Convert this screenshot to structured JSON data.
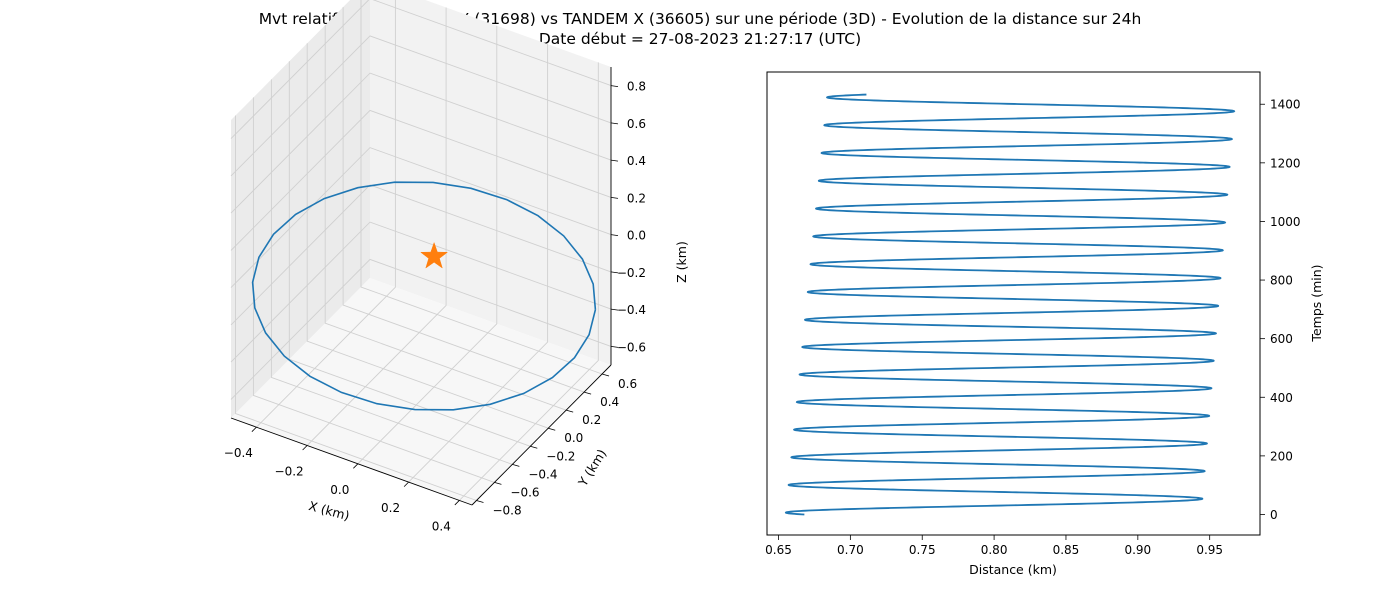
{
  "figure": {
    "title_line1": "Mvt relatif de TERRA SAR X (31698) vs TANDEM X (36605) sur une période (3D) - Evolution de la distance sur 24h",
    "title_line2": "Date début = 27-08-2023 21:27:17 (UTC)"
  },
  "chart_data": [
    {
      "type": "line3d",
      "xlabel": "X (km)",
      "ylabel": "Y (km)",
      "zlabel": "Z (km)",
      "xticks": [
        "−0.4",
        "−0.2",
        "0.0",
        "0.2",
        "0.4"
      ],
      "yticks": [
        "−0.8",
        "−0.6",
        "−0.4",
        "−0.2",
        "0.0",
        "0.2",
        "0.4",
        "0.6"
      ],
      "zticks": [
        "−0.6",
        "−0.4",
        "−0.2",
        "0.0",
        "0.2",
        "0.4",
        "0.6",
        "0.8"
      ],
      "xlim": [
        -0.5,
        0.45
      ],
      "ylim": [
        -0.85,
        0.7
      ],
      "zlim": [
        -0.7,
        0.9
      ],
      "grid": true,
      "series": [
        {
          "color": "#1f77b4",
          "shape": "closed relative-motion ellipse (orbit loop)"
        }
      ],
      "marker": {
        "symbol": "star",
        "color": "#ff7f0e",
        "x": 0.0,
        "y": 0.0,
        "z": 0.0
      }
    },
    {
      "type": "line",
      "xlabel": "Distance (km)",
      "ylabel": "Temps (min)",
      "xticks": [
        "0.65",
        "0.70",
        "0.75",
        "0.80",
        "0.85",
        "0.90",
        "0.95"
      ],
      "yticks": [
        "0",
        "200",
        "400",
        "600",
        "800",
        "1000",
        "1200",
        "1400"
      ],
      "xlim": [
        0.642,
        0.985
      ],
      "ylim": [
        -70,
        1510
      ],
      "yaxis_side": "right",
      "grid": false,
      "color": "#1f77b4",
      "period_min": 94.9,
      "t_end": 1433,
      "d_min_start": 0.655,
      "d_min_end": 0.684,
      "d_max_start": 0.944,
      "d_max_end": 0.968,
      "d_start": 0.668,
      "d_end": 0.694
    }
  ]
}
